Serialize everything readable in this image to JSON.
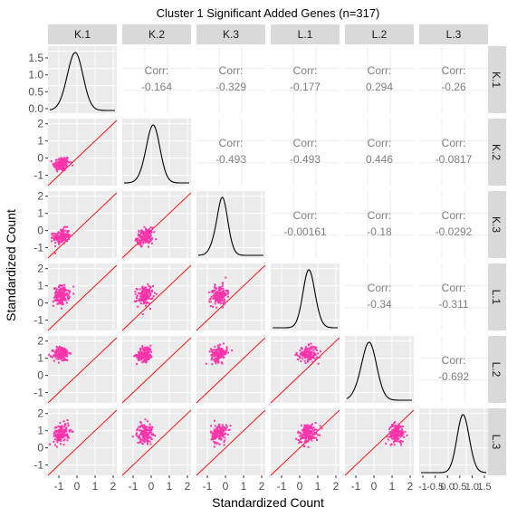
{
  "chart_data": {
    "type": "scatter",
    "title": "Cluster 1 Significant Added Genes (n=317)",
    "xlabel": "Standardized Count",
    "ylabel": "Standardized Count",
    "variables": [
      "K.1",
      "K.2",
      "K.3",
      "L.1",
      "L.2",
      "L.3"
    ],
    "xlim": [
      -1.6,
      2.2
    ],
    "ylim": [
      -1.6,
      2.3
    ],
    "y_ticks": [
      -1,
      0,
      1,
      2
    ],
    "first_row_y_ticks": [
      0.0,
      0.5,
      1.0,
      1.5
    ],
    "first_row_y_tick_labels": [
      "0.0",
      "0.5",
      "1.0",
      "1.5"
    ],
    "x_ticks": [
      -1,
      0,
      1,
      2
    ],
    "x_tick_labels": [
      "-1",
      "0",
      "1",
      "2"
    ],
    "last_col_x_tick_labels": [
      "-1",
      "-0.5",
      "0.0",
      "0.5",
      "1.0",
      "1.5"
    ],
    "corr_label": "Corr:",
    "correlations": [
      {
        "row": "K.1",
        "col": "K.2",
        "value": "-0.164"
      },
      {
        "row": "K.1",
        "col": "K.3",
        "value": "-0.329"
      },
      {
        "row": "K.1",
        "col": "L.1",
        "value": "-0.177"
      },
      {
        "row": "K.1",
        "col": "L.2",
        "value": "0.294"
      },
      {
        "row": "K.1",
        "col": "L.3",
        "value": "-0.26"
      },
      {
        "row": "K.2",
        "col": "K.3",
        "value": "-0.493"
      },
      {
        "row": "K.2",
        "col": "L.1",
        "value": "-0.493"
      },
      {
        "row": "K.2",
        "col": "L.2",
        "value": "0.446"
      },
      {
        "row": "K.2",
        "col": "L.3",
        "value": "-0.0817"
      },
      {
        "row": "K.3",
        "col": "L.1",
        "value": "-0.00161"
      },
      {
        "row": "K.3",
        "col": "L.2",
        "value": "-0.18"
      },
      {
        "row": "K.3",
        "col": "L.3",
        "value": "-0.0292"
      },
      {
        "row": "L.1",
        "col": "L.2",
        "value": "-0.34"
      },
      {
        "row": "L.1",
        "col": "L.3",
        "value": "-0.311"
      },
      {
        "row": "L.2",
        "col": "L.3",
        "value": "-0.692"
      }
    ],
    "means": {
      "K.1": -0.85,
      "K.2": -0.35,
      "K.3": -0.35,
      "L.1": 0.45,
      "L.2": 1.25,
      "L.3": 0.85
    },
    "sds": {
      "K.1": 0.22,
      "K.2": 0.22,
      "K.3": 0.22,
      "L.1": 0.28,
      "L.2": 0.22,
      "L.3": 0.28
    },
    "density_peaks": {
      "K.1": -0.2,
      "K.2": 0.0,
      "K.3": -0.3,
      "L.1": 0.6,
      "L.2": -0.4,
      "L.3": 0.9
    },
    "density_spread": {
      "K.1": 0.45,
      "K.2": 0.4,
      "K.3": 0.35,
      "L.1": 0.35,
      "L.2": 0.45,
      "L.3": 0.35
    },
    "density_skew": {
      "K.1": 0.5,
      "K.2": 0.6,
      "K.3": 1.0,
      "L.1": -0.6,
      "L.2": 0.7,
      "L.3": -0.5
    },
    "diagonal_reference_line": "y = x",
    "colors": {
      "points": "#ff33aa",
      "reference_line": "#ff0000",
      "panel_background": "#ebebeb",
      "strip_background": "#d9d9d9",
      "corr_text": "#808080",
      "density_line": "#000000"
    },
    "grid": true
  }
}
